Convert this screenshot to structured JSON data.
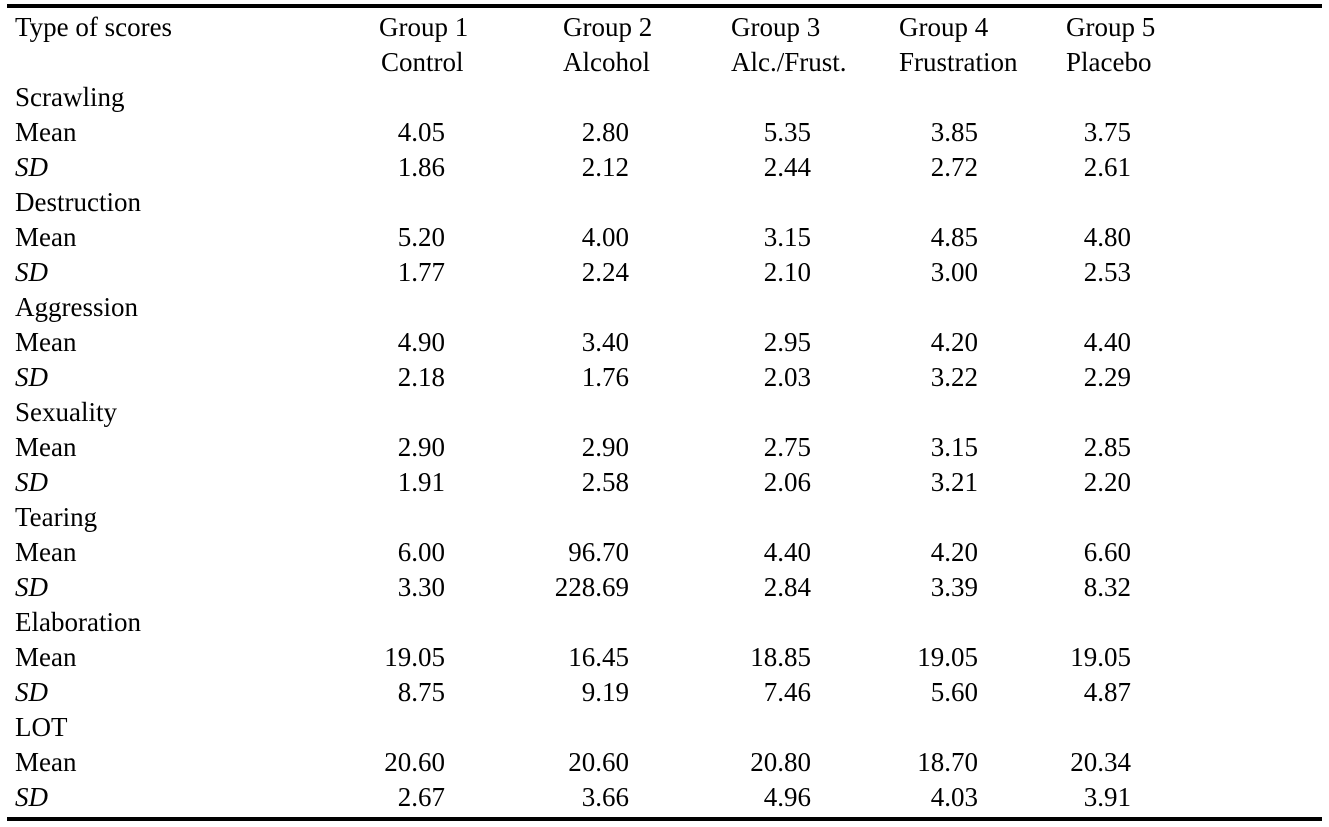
{
  "header": {
    "first_col": "Type of scores",
    "groups": [
      {
        "line1": "Group 1",
        "line2": "Control"
      },
      {
        "line1": "Group 2",
        "line2": "Alcohol"
      },
      {
        "line1": "Group 3",
        "line2": "Alc./Frust."
      },
      {
        "line1": "Group 4",
        "line2": "Frustration"
      },
      {
        "line1": "Group 5",
        "line2": "Placebo"
      }
    ]
  },
  "sections": [
    {
      "title": "Scrawling",
      "mean_label": "Mean",
      "sd_label": "SD",
      "mean": [
        "4.05",
        "2.80",
        "5.35",
        "3.85",
        "3.75"
      ],
      "sd": [
        "1.86",
        "2.12",
        "2.44",
        "2.72",
        "2.61"
      ]
    },
    {
      "title": "Destruction",
      "mean_label": "Mean",
      "sd_label": "SD",
      "mean": [
        "5.20",
        "4.00",
        "3.15",
        "4.85",
        "4.80"
      ],
      "sd": [
        "1.77",
        "2.24",
        "2.10",
        "3.00",
        "2.53"
      ]
    },
    {
      "title": "Aggression",
      "mean_label": "Mean",
      "sd_label": "SD",
      "mean": [
        "4.90",
        "3.40",
        "2.95",
        "4.20",
        "4.40"
      ],
      "sd": [
        "2.18",
        "1.76",
        "2.03",
        "3.22",
        "2.29"
      ]
    },
    {
      "title": "Sexuality",
      "mean_label": "Mean",
      "sd_label": "SD",
      "mean": [
        "2.90",
        "2.90",
        "2.75",
        "3.15",
        "2.85"
      ],
      "sd": [
        "1.91",
        "2.58",
        "2.06",
        "3.21",
        "2.20"
      ]
    },
    {
      "title": "Tearing",
      "mean_label": "Mean",
      "sd_label": "SD",
      "mean": [
        "6.00",
        "96.70",
        "4.40",
        "4.20",
        "6.60"
      ],
      "sd": [
        "3.30",
        "228.69",
        "2.84",
        "3.39",
        "8.32"
      ]
    },
    {
      "title": "Elaboration",
      "mean_label": "Mean",
      "sd_label": "SD",
      "mean": [
        "19.05",
        "16.45",
        "18.85",
        "19.05",
        "19.05"
      ],
      "sd": [
        "8.75",
        "9.19",
        "7.46",
        "5.60",
        "4.87"
      ]
    },
    {
      "title": "LOT",
      "mean_label": "Mean",
      "sd_label": "SD",
      "mean": [
        "20.60",
        "20.60",
        "20.80",
        "18.70",
        "20.34"
      ],
      "sd": [
        "2.67",
        "3.66",
        "4.96",
        "4.03",
        "3.91"
      ]
    }
  ]
}
